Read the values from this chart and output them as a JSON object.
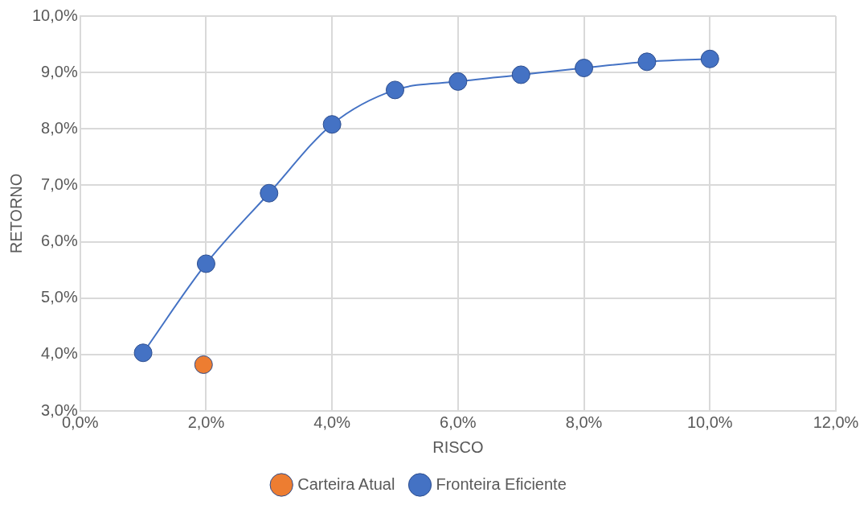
{
  "chart_data": {
    "type": "line",
    "xlabel": "RISCO",
    "ylabel": "RETORNO",
    "xlim": [
      0,
      12
    ],
    "ylim": [
      3,
      10
    ],
    "xticks": [
      {
        "value": 0,
        "label": "0,0%"
      },
      {
        "value": 2,
        "label": "2,0%"
      },
      {
        "value": 4,
        "label": "4,0%"
      },
      {
        "value": 6,
        "label": "6,0%"
      },
      {
        "value": 8,
        "label": "8,0%"
      },
      {
        "value": 10,
        "label": "10,0%"
      },
      {
        "value": 12,
        "label": "12,0%"
      }
    ],
    "yticks": [
      {
        "value": 3,
        "label": "3,0%"
      },
      {
        "value": 4,
        "label": "4,0%"
      },
      {
        "value": 5,
        "label": "5,0%"
      },
      {
        "value": 6,
        "label": "6,0%"
      },
      {
        "value": 7,
        "label": "7,0%"
      },
      {
        "value": 8,
        "label": "8,0%"
      },
      {
        "value": 9,
        "label": "9,0%"
      },
      {
        "value": 10,
        "label": "10,0%"
      }
    ],
    "grid": true,
    "legend": "bottom",
    "marker": "circle",
    "series": [
      {
        "name": "Carteira Atual",
        "type": "scatter",
        "color": "#ed7d31",
        "x": [
          1.96
        ],
        "values": [
          3.82
        ]
      },
      {
        "name": "Fronteira Eficiente",
        "type": "line",
        "color": "#4472c4",
        "x": [
          1,
          2,
          3,
          4,
          5,
          6,
          7,
          8,
          9,
          10
        ],
        "values": [
          4.03,
          5.61,
          6.86,
          8.08,
          8.69,
          8.84,
          8.96,
          9.08,
          9.19,
          9.24
        ]
      }
    ]
  }
}
